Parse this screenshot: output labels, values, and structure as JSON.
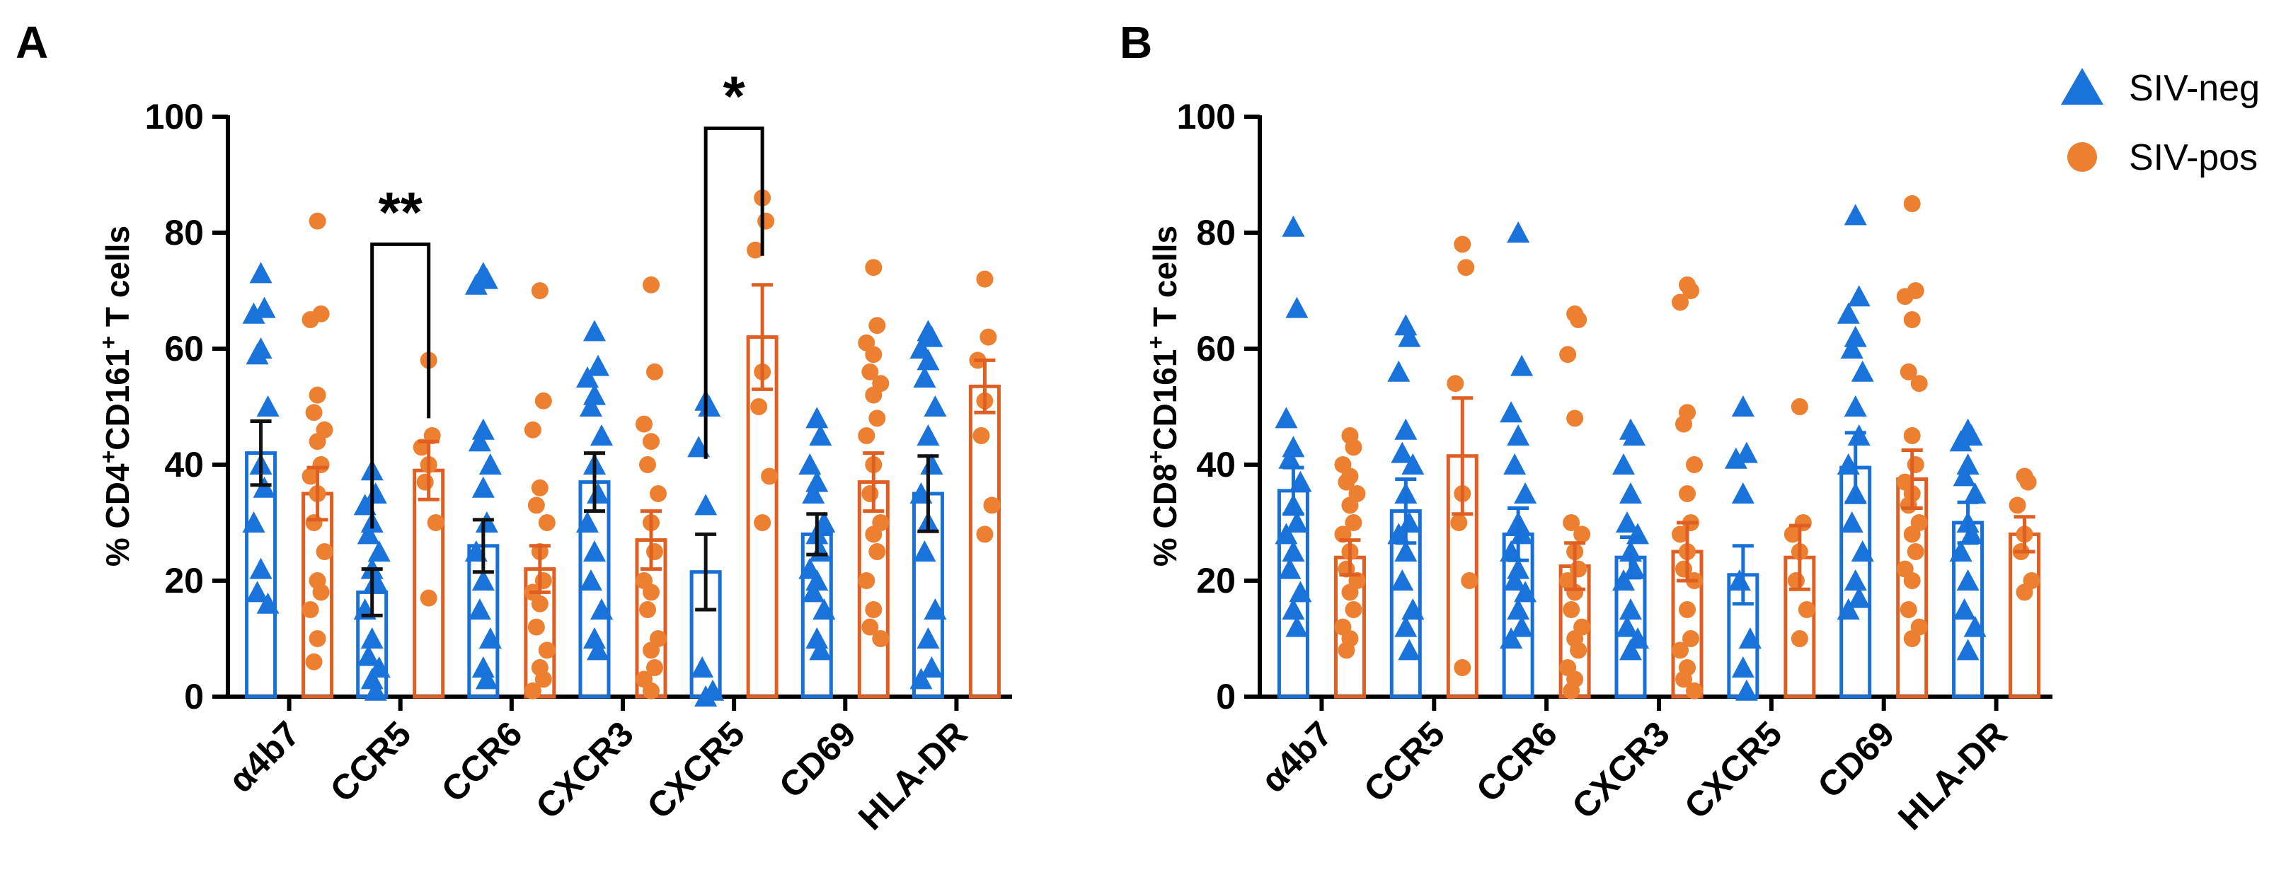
{
  "colors": {
    "neg": "#1670d8",
    "pos": "#df5e21",
    "neg_marker": "#1a73da",
    "pos_marker": "#ec8030"
  },
  "legend": {
    "items": [
      {
        "label": "SIV-neg",
        "marker": "triangle",
        "color_key": "neg"
      },
      {
        "label": "SIV-pos",
        "marker": "circle",
        "color_key": "pos"
      }
    ]
  },
  "chart_data": [
    {
      "panel": "A",
      "type": "bar",
      "ylabel_parts": [
        {
          "text": "% CD4"
        },
        {
          "text": "+",
          "sup": true
        },
        {
          "text": "CD161"
        },
        {
          "text": "+",
          "sup": true
        },
        {
          "text": " T cells"
        }
      ],
      "ylim": [
        0,
        100
      ],
      "yticks": [
        0,
        20,
        40,
        60,
        80,
        100
      ],
      "categories": [
        "α4b7",
        "CCR5",
        "CCR6",
        "CXCR3",
        "CXCR5",
        "CD69",
        "HLA-DR"
      ],
      "series": [
        {
          "name": "SIV-neg",
          "color_key": "neg",
          "marker": "triangle",
          "means": [
            42,
            18,
            26,
            37,
            21.5,
            28,
            35
          ],
          "sem": [
            5.5,
            4,
            4.5,
            5,
            6.5,
            3.5,
            6.5
          ],
          "points": [
            [
              73,
              67,
              66,
              60,
              59,
              50,
              40,
              36,
              30,
              22,
              18,
              16
            ],
            [
              39,
              35,
              33,
              30,
              28,
              25,
              22,
              20,
              15,
              10,
              7,
              5,
              3,
              1
            ],
            [
              73,
              72,
              71,
              46,
              44,
              40,
              36,
              30,
              25,
              20,
              15,
              10,
              5,
              3
            ],
            [
              63,
              57,
              55,
              52,
              50,
              45,
              40,
              35,
              30,
              25,
              20,
              15,
              10,
              8
            ],
            [
              51,
              50,
              43,
              33,
              5,
              1,
              0
            ],
            [
              48,
              45,
              40,
              37,
              35,
              30,
              28,
              25,
              22,
              20,
              18,
              15,
              10,
              8
            ],
            [
              63,
              62,
              60,
              58,
              55,
              50,
              45,
              40,
              35,
              30,
              25,
              15,
              10,
              5,
              3
            ]
          ]
        },
        {
          "name": "SIV-pos",
          "color_key": "pos",
          "marker": "circle",
          "means": [
            35,
            39,
            22,
            27,
            62,
            37,
            53.5
          ],
          "sem": [
            4.5,
            5,
            4,
            5,
            9,
            5,
            4.5
          ],
          "points": [
            [
              82,
              66,
              65,
              52,
              49,
              46,
              44,
              40,
              38,
              35,
              30,
              25,
              20,
              18,
              15,
              10,
              6
            ],
            [
              58,
              45,
              43,
              40,
              37,
              30,
              17
            ],
            [
              70,
              51,
              46,
              36,
              33,
              30,
              25,
              20,
              18,
              16,
              12,
              8,
              5,
              3,
              1
            ],
            [
              71,
              56,
              47,
              44,
              40,
              35,
              30,
              25,
              20,
              18,
              15,
              10,
              8,
              5,
              3,
              1
            ],
            [
              86,
              82,
              77,
              56,
              50,
              38,
              30
            ],
            [
              74,
              64,
              61,
              59,
              56,
              54,
              52,
              48,
              45,
              40,
              35,
              30,
              28,
              25,
              20,
              15,
              12,
              10
            ],
            [
              72,
              62,
              58,
              51,
              45,
              33,
              28
            ]
          ]
        }
      ],
      "annotations": [
        {
          "label": "**",
          "category_index": 1,
          "level": 78
        },
        {
          "label": "*",
          "category_index": 4,
          "level": 98
        }
      ]
    },
    {
      "panel": "B",
      "type": "bar",
      "ylabel_parts": [
        {
          "text": "% CD8"
        },
        {
          "text": "+",
          "sup": true
        },
        {
          "text": "CD161"
        },
        {
          "text": "+",
          "sup": true
        },
        {
          "text": " T cells"
        }
      ],
      "ylim": [
        0,
        100
      ],
      "yticks": [
        0,
        20,
        40,
        60,
        80,
        100
      ],
      "categories": [
        "α4b7",
        "CCR5",
        "CCR6",
        "CXCR3",
        "CXCR5",
        "CD69",
        "HLA-DR"
      ],
      "series": [
        {
          "name": "SIV-neg",
          "color_key": "neg",
          "marker": "triangle",
          "means": [
            35.5,
            32,
            28,
            24,
            21,
            39.5,
            30
          ],
          "sem": [
            4,
            5.5,
            4.5,
            3.5,
            5,
            6,
            3.5
          ],
          "points": [
            [
              81,
              67,
              48,
              43,
              41,
              37,
              33,
              30,
              28,
              25,
              22,
              18,
              15,
              12
            ],
            [
              64,
              62,
              56,
              46,
              42,
              40,
              35,
              30,
              28,
              25,
              20,
              15,
              12,
              8
            ],
            [
              80,
              57,
              49,
              45,
              40,
              35,
              30,
              28,
              25,
              22,
              20,
              18,
              15,
              12,
              10
            ],
            [
              46,
              45,
              40,
              35,
              30,
              28,
              25,
              22,
              20,
              15,
              12,
              10,
              8
            ],
            [
              50,
              42,
              41,
              35,
              20,
              10,
              5,
              1
            ],
            [
              83,
              69,
              66,
              62,
              60,
              56,
              50,
              45,
              40,
              35,
              30,
              25,
              20,
              17,
              15
            ],
            [
              46,
              45,
              44,
              40,
              38,
              35,
              30,
              28,
              25,
              20,
              15,
              12,
              8
            ]
          ]
        },
        {
          "name": "SIV-pos",
          "color_key": "pos",
          "marker": "circle",
          "means": [
            24,
            41.5,
            22.5,
            25,
            24,
            37.5,
            28
          ],
          "sem": [
            3,
            10,
            4,
            5,
            5.5,
            5,
            3
          ],
          "points": [
            [
              45,
              43,
              40,
              38,
              37,
              35,
              33,
              30,
              28,
              25,
              22,
              20,
              18,
              15,
              12,
              10,
              8
            ],
            [
              78,
              74,
              54,
              35,
              30,
              20,
              5
            ],
            [
              66,
              65,
              59,
              48,
              30,
              28,
              25,
              22,
              20,
              18,
              15,
              12,
              10,
              8,
              5,
              3,
              1
            ],
            [
              71,
              70,
              68,
              49,
              47,
              40,
              35,
              30,
              28,
              25,
              22,
              20,
              15,
              10,
              8,
              5,
              3,
              1
            ],
            [
              50,
              30,
              28,
              25,
              20,
              15,
              10
            ],
            [
              85,
              70,
              69,
              65,
              56,
              54,
              45,
              40,
              37,
              35,
              33,
              30,
              28,
              25,
              22,
              20,
              15,
              12,
              10
            ],
            [
              38,
              37,
              33,
              28,
              25,
              20,
              18
            ]
          ]
        }
      ],
      "annotations": []
    }
  ]
}
